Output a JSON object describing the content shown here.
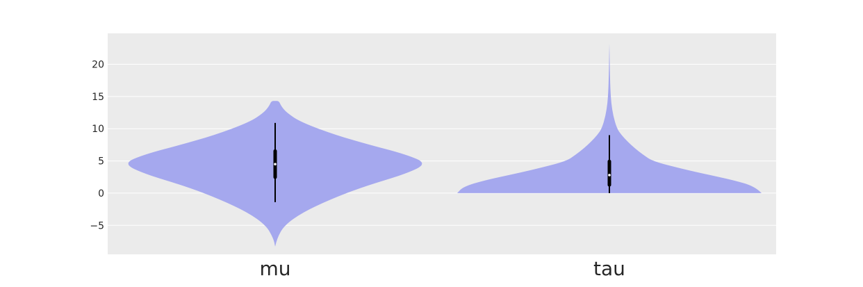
{
  "chart_data": {
    "type": "violin",
    "title": "",
    "xlabel": "",
    "ylabel": "",
    "categories": [
      "mu",
      "tau"
    ],
    "ylim": [
      -9.5,
      24.8
    ],
    "yticks": [
      {
        "value": -5,
        "label": "−5"
      },
      {
        "value": 0,
        "label": "0"
      },
      {
        "value": 5,
        "label": "5"
      },
      {
        "value": 10,
        "label": "10"
      },
      {
        "value": 15,
        "label": "15"
      },
      {
        "value": 20,
        "label": "20"
      }
    ],
    "grid": true,
    "colors": {
      "background": "#ebebeb",
      "grid": "#ffffff",
      "violin": "#a5a8ee",
      "box": "#000000",
      "median": "#ffffff"
    },
    "series": [
      {
        "category": "mu",
        "density_profile": [
          {
            "y": -8.3,
            "w": 0.0
          },
          {
            "y": -7.0,
            "w": 0.012
          },
          {
            "y": -5.0,
            "w": 0.06
          },
          {
            "y": -3.0,
            "w": 0.18
          },
          {
            "y": -1.0,
            "w": 0.36
          },
          {
            "y": 1.0,
            "w": 0.58
          },
          {
            "y": 3.0,
            "w": 0.86
          },
          {
            "y": 4.6,
            "w": 1.0
          },
          {
            "y": 6.0,
            "w": 0.86
          },
          {
            "y": 7.5,
            "w": 0.62
          },
          {
            "y": 9.0,
            "w": 0.4
          },
          {
            "y": 11.0,
            "w": 0.17
          },
          {
            "y": 12.5,
            "w": 0.075
          },
          {
            "y": 13.5,
            "w": 0.04
          },
          {
            "y": 14.3,
            "w": 0.025
          },
          {
            "y": 14.3,
            "w": 0.0
          }
        ],
        "whisker": [
          -1.4,
          10.9
        ],
        "box": [
          2.2,
          6.8
        ],
        "median": 4.5
      },
      {
        "category": "tau",
        "density_profile": [
          {
            "y": 0.0,
            "w": 1.0
          },
          {
            "y": 1.0,
            "w": 0.96
          },
          {
            "y": 2.0,
            "w": 0.82
          },
          {
            "y": 3.0,
            "w": 0.62
          },
          {
            "y": 4.0,
            "w": 0.44
          },
          {
            "y": 5.0,
            "w": 0.28
          },
          {
            "y": 6.0,
            "w": 0.22
          },
          {
            "y": 7.0,
            "w": 0.165
          },
          {
            "y": 8.0,
            "w": 0.12
          },
          {
            "y": 9.0,
            "w": 0.08
          },
          {
            "y": 10.0,
            "w": 0.05
          },
          {
            "y": 12.0,
            "w": 0.025
          },
          {
            "y": 14.0,
            "w": 0.012
          },
          {
            "y": 16.0,
            "w": 0.007
          },
          {
            "y": 18.0,
            "w": 0.004
          },
          {
            "y": 20.0,
            "w": 0.0025
          },
          {
            "y": 23.2,
            "w": 0.0
          }
        ],
        "whisker": [
          0.0,
          9.0
        ],
        "box": [
          1.0,
          5.2
        ],
        "median": 2.8
      }
    ]
  }
}
